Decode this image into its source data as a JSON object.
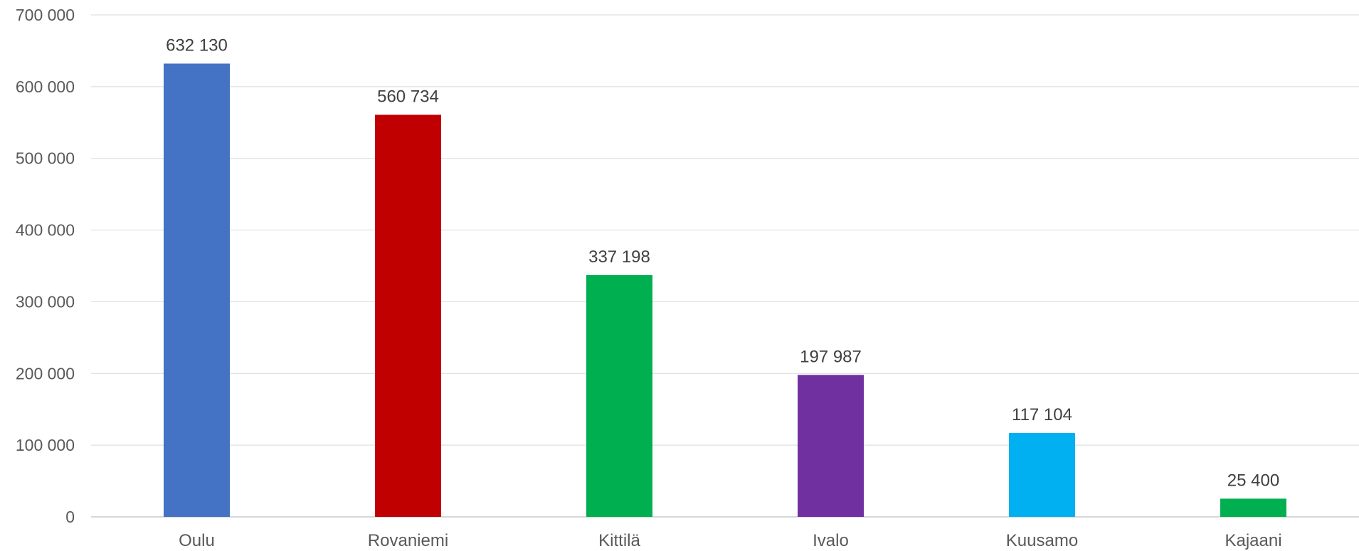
{
  "chart_data": {
    "type": "bar",
    "title": "",
    "xlabel": "",
    "ylabel": "",
    "categories": [
      "Oulu",
      "Rovaniemi",
      "Kittilä",
      "Ivalo",
      "Kuusamo",
      "Kajaani"
    ],
    "values": [
      632130,
      560734,
      337198,
      197987,
      117104,
      25400
    ],
    "value_labels": [
      "632 130",
      "560 734",
      "337 198",
      "197 987",
      "117 104",
      "25 400"
    ],
    "colors": [
      "#4472C4",
      "#C00000",
      "#00B050",
      "#7030A0",
      "#00B0F0",
      "#00B050"
    ],
    "ylim": [
      0,
      700000
    ],
    "yticks": [
      0,
      100000,
      200000,
      300000,
      400000,
      500000,
      600000,
      700000
    ],
    "ytick_labels": [
      "0",
      "100 000",
      "200 000",
      "300 000",
      "400 000",
      "500 000",
      "600 000",
      "700 000"
    ],
    "grid": true,
    "legend": "none"
  }
}
